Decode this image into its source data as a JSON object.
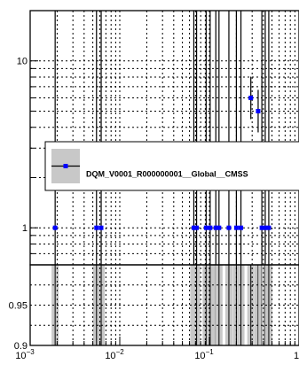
{
  "chart_data": [
    {
      "type": "scatter",
      "title": "",
      "xlabel": "",
      "ylabel": "",
      "x_scale": "log",
      "y_scale": "log",
      "xlim": [
        0.001,
        1
      ],
      "ylim": [
        0.6,
        20
      ],
      "grid": true,
      "legend_position": "middle-right",
      "color": "#0000ff",
      "x_tick_labels": [
        {
          "base": "10",
          "exp": "−3",
          "value": 0.001
        },
        {
          "base": "10",
          "exp": "−2",
          "value": 0.01
        },
        {
          "base": "10",
          "exp": "−1",
          "value": 0.1
        },
        {
          "base": "1",
          "exp": "",
          "value": 1
        }
      ],
      "y_tick_labels": [
        {
          "text": "1",
          "value": 1
        },
        {
          "text": "10",
          "value": 10
        }
      ],
      "series": [
        {
          "name": "DQM_V0001_R000000001__Global__CMSS",
          "points": [
            {
              "x": 0.0019,
              "y": 1
            },
            {
              "x": 0.0055,
              "y": 1
            },
            {
              "x": 0.0062,
              "y": 1
            },
            {
              "x": 0.067,
              "y": 1
            },
            {
              "x": 0.072,
              "y": 1
            },
            {
              "x": 0.092,
              "y": 1
            },
            {
              "x": 0.102,
              "y": 1
            },
            {
              "x": 0.118,
              "y": 1
            },
            {
              "x": 0.128,
              "y": 1
            },
            {
              "x": 0.165,
              "y": 1
            },
            {
              "x": 0.2,
              "y": 1
            },
            {
              "x": 0.225,
              "y": 1
            },
            {
              "x": 0.29,
              "y": 6
            },
            {
              "x": 0.35,
              "y": 5
            },
            {
              "x": 0.385,
              "y": 1
            },
            {
              "x": 0.42,
              "y": 1
            },
            {
              "x": 0.46,
              "y": 1
            }
          ]
        }
      ]
    },
    {
      "type": "scatter",
      "title": "",
      "xlabel": "",
      "ylabel": "",
      "x_scale": "log",
      "xlim": [
        0.001,
        1
      ],
      "ylim": [
        0.9,
        1.0
      ],
      "grid": true,
      "y_tick_labels": [
        {
          "text": "0.95",
          "value": 0.95
        },
        {
          "text": "0.9",
          "value": 0.9
        }
      ],
      "band_color": "#c8c8c8",
      "bands_x": [
        0.0019,
        0.0055,
        0.0062,
        0.067,
        0.072,
        0.092,
        0.102,
        0.118,
        0.128,
        0.165,
        0.2,
        0.225,
        0.29,
        0.35,
        0.385,
        0.42,
        0.46
      ]
    }
  ]
}
